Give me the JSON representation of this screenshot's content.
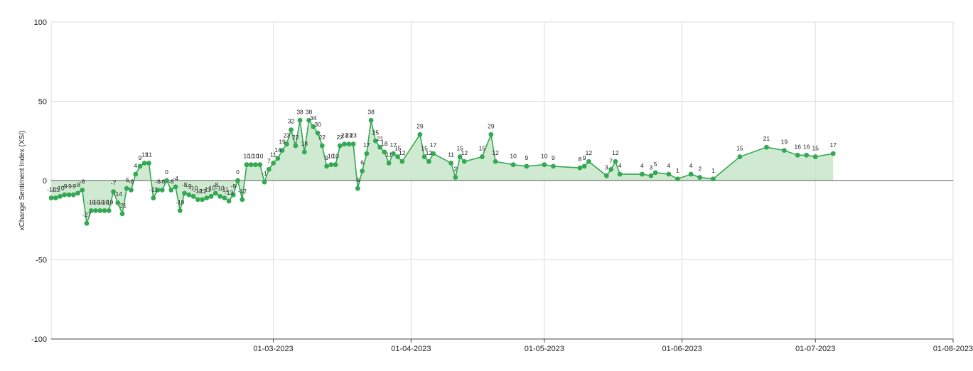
{
  "chart_data": {
    "type": "area",
    "title": "",
    "xlabel": "",
    "ylabel": "xChange Sentiment Index (XSI)",
    "ylim": [
      -100,
      100
    ],
    "yticks": [
      "100",
      "50",
      "0",
      "-50",
      "-100"
    ],
    "xlim": [
      "2023-01-10",
      "2023-08-01"
    ],
    "xticks": [
      {
        "date": "2023-03-01",
        "label": "01-03-2023"
      },
      {
        "date": "2023-04-01",
        "label": "01-04-2023"
      },
      {
        "date": "2023-05-01",
        "label": "01-05-2023"
      },
      {
        "date": "2023-06-01",
        "label": "01-06-2023"
      },
      {
        "date": "2023-07-01",
        "label": "01-07-2023"
      },
      {
        "date": "2023-08-01",
        "label": "01-08-2023"
      }
    ],
    "grid": true,
    "colors": {
      "line": "#34a853",
      "fill": "#c8e6c9",
      "grid": "#dddddd",
      "axis": "#444444"
    },
    "series": [
      {
        "points": [
          {
            "x": "2023-01-10",
            "y": -11
          },
          {
            "x": "2023-01-11",
            "y": -11
          },
          {
            "x": "2023-01-12",
            "y": -10
          },
          {
            "x": "2023-01-13",
            "y": -9
          },
          {
            "x": "2023-01-14",
            "y": -9
          },
          {
            "x": "2023-01-15",
            "y": -9
          },
          {
            "x": "2023-01-16",
            "y": -8
          },
          {
            "x": "2023-01-17",
            "y": -6
          },
          {
            "x": "2023-01-18",
            "y": -27
          },
          {
            "x": "2023-01-19",
            "y": -19
          },
          {
            "x": "2023-01-20",
            "y": -19
          },
          {
            "x": "2023-01-21",
            "y": -19
          },
          {
            "x": "2023-01-22",
            "y": -19
          },
          {
            "x": "2023-01-23",
            "y": -19
          },
          {
            "x": "2023-01-24",
            "y": -7
          },
          {
            "x": "2023-01-25",
            "y": -14
          },
          {
            "x": "2023-01-26",
            "y": -21
          },
          {
            "x": "2023-01-27",
            "y": -5
          },
          {
            "x": "2023-01-28",
            "y": -6
          },
          {
            "x": "2023-01-29",
            "y": 4
          },
          {
            "x": "2023-01-30",
            "y": 9
          },
          {
            "x": "2023-01-31",
            "y": 11
          },
          {
            "x": "2023-02-01",
            "y": 11
          },
          {
            "x": "2023-02-02",
            "y": -11
          },
          {
            "x": "2023-02-03",
            "y": -6
          },
          {
            "x": "2023-02-04",
            "y": -6
          },
          {
            "x": "2023-02-05",
            "y": 0
          },
          {
            "x": "2023-02-06",
            "y": -6
          },
          {
            "x": "2023-02-07",
            "y": -4
          },
          {
            "x": "2023-02-08",
            "y": -19
          },
          {
            "x": "2023-02-09",
            "y": -8
          },
          {
            "x": "2023-02-10",
            "y": -9
          },
          {
            "x": "2023-02-11",
            "y": -10
          },
          {
            "x": "2023-02-12",
            "y": -12
          },
          {
            "x": "2023-02-13",
            "y": -12
          },
          {
            "x": "2023-02-14",
            "y": -11
          },
          {
            "x": "2023-02-15",
            "y": -10
          },
          {
            "x": "2023-02-16",
            "y": -8
          },
          {
            "x": "2023-02-17",
            "y": -10
          },
          {
            "x": "2023-02-18",
            "y": -11
          },
          {
            "x": "2023-02-19",
            "y": -13
          },
          {
            "x": "2023-02-20",
            "y": -9
          },
          {
            "x": "2023-02-21",
            "y": 0
          },
          {
            "x": "2023-02-22",
            "y": -12
          },
          {
            "x": "2023-02-23",
            "y": 10
          },
          {
            "x": "2023-02-24",
            "y": 10
          },
          {
            "x": "2023-02-25",
            "y": 10
          },
          {
            "x": "2023-02-26",
            "y": 10
          },
          {
            "x": "2023-02-27",
            "y": -1
          },
          {
            "x": "2023-02-28",
            "y": 7
          },
          {
            "x": "2023-03-01",
            "y": 11
          },
          {
            "x": "2023-03-02",
            "y": 14
          },
          {
            "x": "2023-03-03",
            "y": 19
          },
          {
            "x": "2023-03-04",
            "y": 23
          },
          {
            "x": "2023-03-05",
            "y": 32
          },
          {
            "x": "2023-03-06",
            "y": 22
          },
          {
            "x": "2023-03-07",
            "y": 38
          },
          {
            "x": "2023-03-08",
            "y": 18
          },
          {
            "x": "2023-03-09",
            "y": 38
          },
          {
            "x": "2023-03-10",
            "y": 34
          },
          {
            "x": "2023-03-11",
            "y": 30
          },
          {
            "x": "2023-03-12",
            "y": 22
          },
          {
            "x": "2023-03-13",
            "y": 9
          },
          {
            "x": "2023-03-14",
            "y": 10
          },
          {
            "x": "2023-03-15",
            "y": 10
          },
          {
            "x": "2023-03-16",
            "y": 22
          },
          {
            "x": "2023-03-17",
            "y": 23
          },
          {
            "x": "2023-03-18",
            "y": 23
          },
          {
            "x": "2023-03-19",
            "y": 23
          },
          {
            "x": "2023-03-20",
            "y": -5
          },
          {
            "x": "2023-03-21",
            "y": 6
          },
          {
            "x": "2023-03-22",
            "y": 17
          },
          {
            "x": "2023-03-23",
            "y": 38
          },
          {
            "x": "2023-03-24",
            "y": 25
          },
          {
            "x": "2023-03-25",
            "y": 21
          },
          {
            "x": "2023-03-26",
            "y": 18
          },
          {
            "x": "2023-03-27",
            "y": 11
          },
          {
            "x": "2023-03-28",
            "y": 17
          },
          {
            "x": "2023-03-29",
            "y": 15
          },
          {
            "x": "2023-03-30",
            "y": 12
          },
          {
            "x": "2023-04-03",
            "y": 29
          },
          {
            "x": "2023-04-04",
            "y": 15
          },
          {
            "x": "2023-04-05",
            "y": 12
          },
          {
            "x": "2023-04-06",
            "y": 17
          },
          {
            "x": "2023-04-10",
            "y": 11
          },
          {
            "x": "2023-04-11",
            "y": 2
          },
          {
            "x": "2023-04-12",
            "y": 15
          },
          {
            "x": "2023-04-13",
            "y": 12
          },
          {
            "x": "2023-04-17",
            "y": 15
          },
          {
            "x": "2023-04-19",
            "y": 29
          },
          {
            "x": "2023-04-20",
            "y": 12
          },
          {
            "x": "2023-04-24",
            "y": 10
          },
          {
            "x": "2023-04-27",
            "y": 9
          },
          {
            "x": "2023-05-01",
            "y": 10
          },
          {
            "x": "2023-05-03",
            "y": 9
          },
          {
            "x": "2023-05-09",
            "y": 8
          },
          {
            "x": "2023-05-10",
            "y": 9
          },
          {
            "x": "2023-05-11",
            "y": 12
          },
          {
            "x": "2023-05-15",
            "y": 3
          },
          {
            "x": "2023-05-16",
            "y": 7
          },
          {
            "x": "2023-05-17",
            "y": 12
          },
          {
            "x": "2023-05-18",
            "y": 4
          },
          {
            "x": "2023-05-23",
            "y": 4
          },
          {
            "x": "2023-05-25",
            "y": 3
          },
          {
            "x": "2023-05-26",
            "y": 5
          },
          {
            "x": "2023-05-29",
            "y": 4
          },
          {
            "x": "2023-05-31",
            "y": 1
          },
          {
            "x": "2023-06-03",
            "y": 4
          },
          {
            "x": "2023-06-05",
            "y": 2
          },
          {
            "x": "2023-06-08",
            "y": 1
          },
          {
            "x": "2023-06-14",
            "y": 15
          },
          {
            "x": "2023-06-20",
            "y": 21
          },
          {
            "x": "2023-06-24",
            "y": 19
          },
          {
            "x": "2023-06-27",
            "y": 16
          },
          {
            "x": "2023-06-29",
            "y": 16
          },
          {
            "x": "2023-07-01",
            "y": 15
          },
          {
            "x": "2023-07-05",
            "y": 17
          }
        ]
      }
    ]
  }
}
